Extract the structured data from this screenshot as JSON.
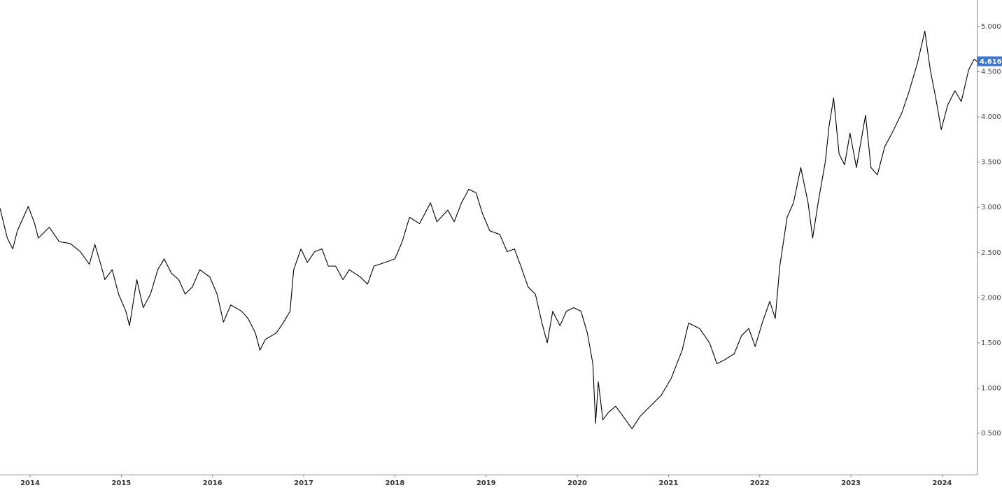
{
  "chart_data": {
    "type": "line",
    "x": [
      2013.67,
      2013.75,
      2013.81,
      2013.86,
      2013.98,
      2014.05,
      2014.09,
      2014.21,
      2014.32,
      2014.44,
      2014.55,
      2014.65,
      2014.71,
      2014.78,
      2014.82,
      2014.9,
      2014.97,
      2015.05,
      2015.09,
      2015.17,
      2015.24,
      2015.32,
      2015.4,
      2015.47,
      2015.55,
      2015.63,
      2015.7,
      2015.78,
      2015.86,
      2015.97,
      2016.05,
      2016.12,
      2016.2,
      2016.32,
      2016.39,
      2016.47,
      2016.52,
      2016.58,
      2016.7,
      2016.78,
      2016.85,
      2016.89,
      2016.97,
      2017.04,
      2017.12,
      2017.2,
      2017.27,
      2017.35,
      2017.43,
      2017.5,
      2017.62,
      2017.7,
      2017.77,
      2017.89,
      2018.0,
      2018.08,
      2018.16,
      2018.27,
      2018.39,
      2018.46,
      2018.58,
      2018.65,
      2018.73,
      2018.81,
      2018.89,
      2018.96,
      2019.04,
      2019.15,
      2019.23,
      2019.31,
      2019.38,
      2019.46,
      2019.54,
      2019.61,
      2019.67,
      2019.73,
      2019.81,
      2019.88,
      2019.96,
      2020.04,
      2020.11,
      2020.17,
      2020.2,
      2020.23,
      2020.28,
      2020.34,
      2020.42,
      2020.5,
      2020.6,
      2020.69,
      2020.8,
      2020.92,
      2021.03,
      2021.15,
      2021.22,
      2021.34,
      2021.45,
      2021.53,
      2021.61,
      2021.72,
      2021.8,
      2021.88,
      2021.95,
      2022.03,
      2022.11,
      2022.17,
      2022.22,
      2022.3,
      2022.37,
      2022.45,
      2022.53,
      2022.58,
      2022.64,
      2022.72,
      2022.76,
      2022.81,
      2022.87,
      2022.93,
      2022.99,
      2023.06,
      2023.16,
      2023.22,
      2023.29,
      2023.37,
      2023.45,
      2023.56,
      2023.64,
      2023.73,
      2023.81,
      2023.87,
      2023.93,
      2023.99,
      2024.06,
      2024.14,
      2024.21,
      2024.29,
      2024.35,
      2024.38
    ],
    "series": [
      {
        "color": "#000000",
        "values": [
          2.99,
          2.66,
          2.54,
          2.74,
          3.01,
          2.82,
          2.66,
          2.78,
          2.62,
          2.6,
          2.51,
          2.37,
          2.59,
          2.35,
          2.2,
          2.31,
          2.04,
          1.85,
          1.69,
          2.2,
          1.89,
          2.04,
          2.31,
          2.43,
          2.27,
          2.2,
          2.04,
          2.12,
          2.31,
          2.23,
          2.04,
          1.73,
          1.92,
          1.85,
          1.77,
          1.61,
          1.42,
          1.54,
          1.61,
          1.73,
          1.85,
          2.31,
          2.54,
          2.39,
          2.51,
          2.54,
          2.35,
          2.35,
          2.2,
          2.31,
          2.23,
          2.15,
          2.35,
          2.39,
          2.43,
          2.62,
          2.89,
          2.82,
          3.05,
          2.84,
          2.97,
          2.84,
          3.05,
          3.2,
          3.16,
          2.93,
          2.74,
          2.7,
          2.51,
          2.54,
          2.35,
          2.12,
          2.04,
          1.73,
          1.5,
          1.85,
          1.69,
          1.85,
          1.89,
          1.85,
          1.61,
          1.27,
          0.61,
          1.07,
          0.65,
          0.73,
          0.8,
          0.69,
          0.55,
          0.69,
          0.8,
          0.92,
          1.11,
          1.42,
          1.72,
          1.66,
          1.5,
          1.27,
          1.31,
          1.38,
          1.58,
          1.66,
          1.46,
          1.73,
          1.96,
          1.77,
          2.35,
          2.89,
          3.05,
          3.44,
          3.05,
          2.66,
          3.05,
          3.51,
          3.9,
          4.21,
          3.59,
          3.47,
          3.82,
          3.44,
          4.02,
          3.44,
          3.36,
          3.67,
          3.82,
          4.05,
          4.29,
          4.6,
          4.95,
          4.52,
          4.21,
          3.86,
          4.13,
          4.29,
          4.17,
          4.52,
          4.64,
          4.616
        ]
      }
    ],
    "xlim": [
      2013.67,
      2024.38
    ],
    "xticks": [
      2014,
      2015,
      2016,
      2017,
      2018,
      2019,
      2020,
      2021,
      2022,
      2023,
      2024
    ],
    "ylim": [
      0.043,
      5.294
    ],
    "yticks": [
      {
        "value": 0.5,
        "label": "0.500"
      },
      {
        "value": 1,
        "label": "1.000"
      },
      {
        "value": 1.5,
        "label": "1.500"
      },
      {
        "value": 2,
        "label": "2.000"
      },
      {
        "value": 2.5,
        "label": "2.500"
      },
      {
        "value": 3,
        "label": "3.000"
      },
      {
        "value": 3.5,
        "label": "3.500"
      },
      {
        "value": 4,
        "label": "4.000"
      },
      {
        "value": 4.5,
        "label": "4.500"
      },
      {
        "value": 5,
        "label": "5.000"
      }
    ],
    "last_value_color": "#3a78d8"
  }
}
